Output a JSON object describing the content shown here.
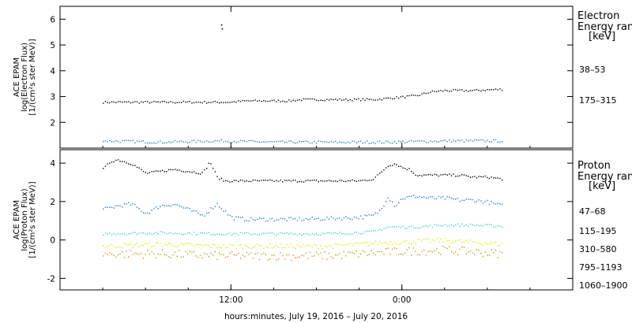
{
  "chart_data": [
    {
      "type": "scatter",
      "panel": "electron",
      "ylabel_lines": [
        "ACE EPAM",
        "log(Electron Flux)",
        "[1/(cm²s ster MeV)]"
      ],
      "ylim": [
        1,
        6.5
      ],
      "yticks": [
        2,
        3,
        4,
        5,
        6
      ],
      "legend_title_lines": [
        "Electron",
        "Energy ranges",
        "[keV]"
      ],
      "series": [
        {
          "name": "38–53",
          "color": "#000000",
          "x": [
            0,
            1,
            2,
            3,
            4,
            5,
            6,
            7,
            8,
            9,
            10,
            11,
            12,
            13,
            14,
            15,
            16,
            17,
            18,
            19,
            20,
            21,
            22,
            23,
            24,
            25,
            26,
            27,
            28
          ],
          "y": [
            2.8,
            2.8,
            2.8,
            2.8,
            2.8,
            2.8,
            2.8,
            2.8,
            2.8,
            2.8,
            2.85,
            2.85,
            2.85,
            2.85,
            2.9,
            2.9,
            2.9,
            2.9,
            2.9,
            2.9,
            2.95,
            3.0,
            3.05,
            3.2,
            3.25,
            3.25,
            3.25,
            3.28,
            3.3
          ]
        },
        {
          "name": "175–315",
          "color": "#1f7fd0",
          "x": [
            0,
            4,
            8,
            12,
            16,
            20,
            24,
            28
          ],
          "y": [
            1.3,
            1.25,
            1.3,
            1.25,
            1.25,
            1.25,
            1.3,
            1.3
          ]
        }
      ],
      "annotations": [
        {
          "x": 8.3,
          "y": 5.8,
          "label": ""
        }
      ]
    },
    {
      "type": "scatter",
      "panel": "proton",
      "ylabel_lines": [
        "ACE EPAM",
        "log(Proton Flux)",
        "[1/(cm²s ster MeV)]"
      ],
      "ylim": [
        -2.6,
        4.7
      ],
      "yticks": [
        -2,
        0,
        2,
        4
      ],
      "legend_title_lines": [
        "Proton",
        "Energy ranges",
        "[keV]"
      ],
      "series": [
        {
          "name": "47–68",
          "color": "#000000",
          "x": [
            0,
            0.5,
            1,
            2,
            3,
            4,
            5,
            6,
            7,
            7.5,
            8,
            8.5,
            9,
            10,
            12,
            14,
            16,
            18,
            19,
            20,
            20.5,
            21,
            21.5,
            22,
            23,
            24,
            25,
            26,
            27,
            28
          ],
          "y": [
            3.7,
            4.1,
            4.2,
            4.0,
            3.5,
            3.6,
            3.7,
            3.6,
            3.5,
            4.1,
            3.3,
            3.1,
            3.1,
            3.1,
            3.1,
            3.1,
            3.1,
            3.1,
            3.2,
            3.9,
            4.0,
            3.8,
            3.7,
            3.4,
            3.4,
            3.4,
            3.4,
            3.3,
            3.3,
            3.2
          ]
        },
        {
          "name": "115–195",
          "color": "#1f7fd0",
          "x": [
            0,
            1,
            2,
            3,
            4,
            5,
            6,
            7,
            8,
            9,
            10,
            12,
            14,
            16,
            18,
            19,
            19.5,
            20,
            20.5,
            21,
            22,
            23,
            24,
            25,
            26,
            27,
            28
          ],
          "y": [
            1.6,
            1.8,
            1.9,
            1.4,
            1.8,
            1.9,
            1.6,
            1.3,
            1.9,
            1.2,
            1.1,
            1.1,
            1.1,
            1.15,
            1.2,
            1.3,
            1.6,
            2.3,
            1.8,
            2.2,
            2.3,
            2.2,
            2.2,
            2.1,
            2.1,
            2.0,
            1.8
          ]
        },
        {
          "name": "310–580",
          "color": "#33d6d6",
          "x": [
            0,
            4,
            8,
            12,
            16,
            19,
            20,
            22,
            24,
            26,
            28
          ],
          "y": [
            0.35,
            0.4,
            0.35,
            0.35,
            0.35,
            0.45,
            0.7,
            0.7,
            0.8,
            0.8,
            0.75
          ]
        },
        {
          "name": "795–1193",
          "color": "#e6e600",
          "x": [
            0,
            4,
            8,
            12,
            16,
            20,
            24,
            28
          ],
          "y": [
            -0.3,
            -0.2,
            -0.3,
            -0.3,
            -0.3,
            -0.1,
            0.0,
            -0.2
          ]
        },
        {
          "name": "1060–1900",
          "color": "#e8890c",
          "x": [
            0,
            4,
            8,
            12,
            16,
            20,
            24,
            28
          ],
          "y": [
            -0.7,
            -0.7,
            -0.8,
            -0.8,
            -0.8,
            -0.6,
            -0.5,
            -0.7
          ]
        }
      ]
    }
  ],
  "x_axis": {
    "label": "hours:minutes, July 19, 2016 – July 20, 2016",
    "xlim": [
      -3,
      33
    ],
    "ticks": [
      {
        "x": 9,
        "label": "12:00"
      },
      {
        "x": 21,
        "label": "0:00"
      }
    ]
  }
}
